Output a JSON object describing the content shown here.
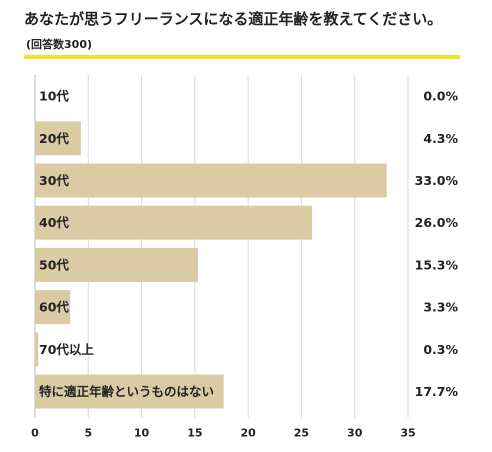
{
  "title": "あなたが思うフリーランスになる適正年齢を教えてください。",
  "subtitle": "(回答数300)",
  "colors": {
    "accent": "#f2e230",
    "bar": "#dbcba5",
    "grid": "#d9d9d9",
    "axis": "#bbbbbb"
  },
  "chart_data": {
    "type": "bar",
    "orientation": "horizontal",
    "title": "あなたが思うフリーランスになる適正年齢を教えてください。",
    "subtitle": "(回答数300)",
    "categories": [
      "10代",
      "20代",
      "30代",
      "40代",
      "50代",
      "60代",
      "70代以上",
      "特に適正年齢というものはない"
    ],
    "values": [
      0.0,
      4.3,
      33.0,
      26.0,
      15.3,
      3.3,
      0.3,
      17.7
    ],
    "value_labels": [
      "0.0%",
      "4.3%",
      "33.0%",
      "26.0%",
      "15.3%",
      "3.3%",
      "0.3%",
      "17.7%"
    ],
    "xticks": [
      0,
      5,
      10,
      15,
      20,
      25,
      30,
      35
    ],
    "xlim": [
      0,
      35
    ],
    "xlabel": "",
    "ylabel": "",
    "grid": "vertical",
    "legend": "none"
  }
}
